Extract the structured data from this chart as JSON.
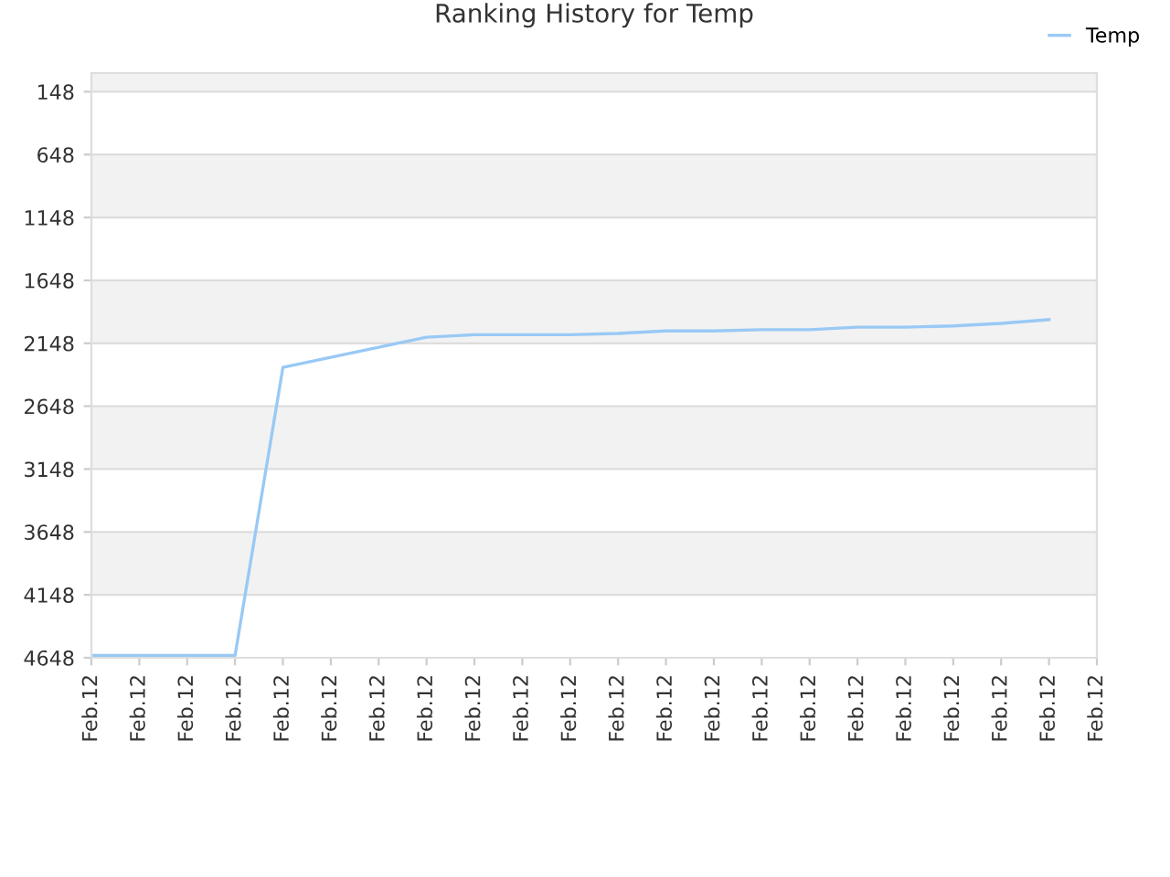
{
  "chart_data": {
    "type": "line",
    "title": "Ranking History for Temp",
    "categories": [
      "Feb.12",
      "Feb.12",
      "Feb.12",
      "Feb.12",
      "Feb.12",
      "Feb.12",
      "Feb.12",
      "Feb.12",
      "Feb.12",
      "Feb.12",
      "Feb.12",
      "Feb.12",
      "Feb.12",
      "Feb.12",
      "Feb.12",
      "Feb.12",
      "Feb.12",
      "Feb.12",
      "Feb.12",
      "Feb.12",
      "Feb.12",
      "Feb.12"
    ],
    "series": [
      {
        "name": "Temp",
        "color": "#99c9f5",
        "values": [
          4630,
          4630,
          4630,
          4630,
          2340,
          2260,
          2180,
          2100,
          2080,
          2080,
          2080,
          2070,
          2050,
          2050,
          2040,
          2040,
          2020,
          2020,
          2010,
          1990,
          1960,
          null
        ]
      }
    ],
    "ylim": [
      4648,
      0
    ],
    "yticks": [
      148,
      648,
      1148,
      1648,
      2148,
      2648,
      3148,
      3648,
      4148,
      4648
    ],
    "grid": "y",
    "legend": "top right",
    "marker": "none",
    "line_style": "solid"
  }
}
